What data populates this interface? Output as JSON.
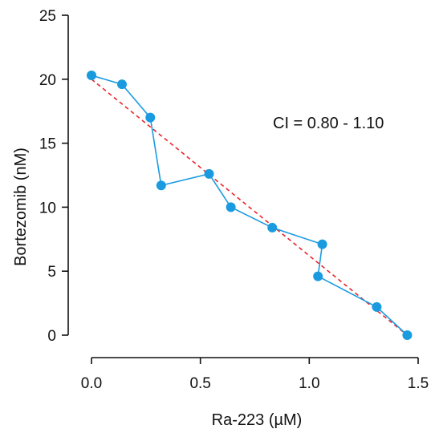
{
  "chart_data": {
    "type": "scatter",
    "title": "",
    "xlabel": "Ra-223 (µM)",
    "ylabel": "Bortezomib (nM)",
    "xlim": [
      0,
      1.5
    ],
    "ylim": [
      0,
      25
    ],
    "x_ticks": [
      0.0,
      0.5,
      1.0,
      1.5
    ],
    "x_tick_labels": [
      "0.0",
      "0.5",
      "1.0",
      "1.5"
    ],
    "y_ticks": [
      0,
      5,
      10,
      15,
      20,
      25
    ],
    "y_tick_labels": [
      "0",
      "5",
      "10",
      "15",
      "20",
      "25"
    ],
    "grid": false,
    "legend": "none",
    "annotation": "CI = 0.80 - 1.10",
    "series": [
      {
        "style": "line+markers",
        "color": "#1a9be0",
        "points": [
          {
            "x": 0.0,
            "y": 20.3
          },
          {
            "x": 0.14,
            "y": 19.6
          },
          {
            "x": 0.27,
            "y": 17.0
          },
          {
            "x": 0.32,
            "y": 11.7
          },
          {
            "x": 0.54,
            "y": 12.6
          },
          {
            "x": 0.64,
            "y": 10.0
          },
          {
            "x": 0.83,
            "y": 8.4
          },
          {
            "x": 1.06,
            "y": 7.1
          },
          {
            "x": 1.04,
            "y": 4.6
          },
          {
            "x": 1.31,
            "y": 2.2
          },
          {
            "x": 1.45,
            "y": 0.0
          }
        ]
      },
      {
        "style": "dashed-line",
        "color": "#e8252b",
        "points": [
          {
            "x": 0.0,
            "y": 20.0
          },
          {
            "x": 1.45,
            "y": 0.0
          }
        ]
      }
    ]
  }
}
